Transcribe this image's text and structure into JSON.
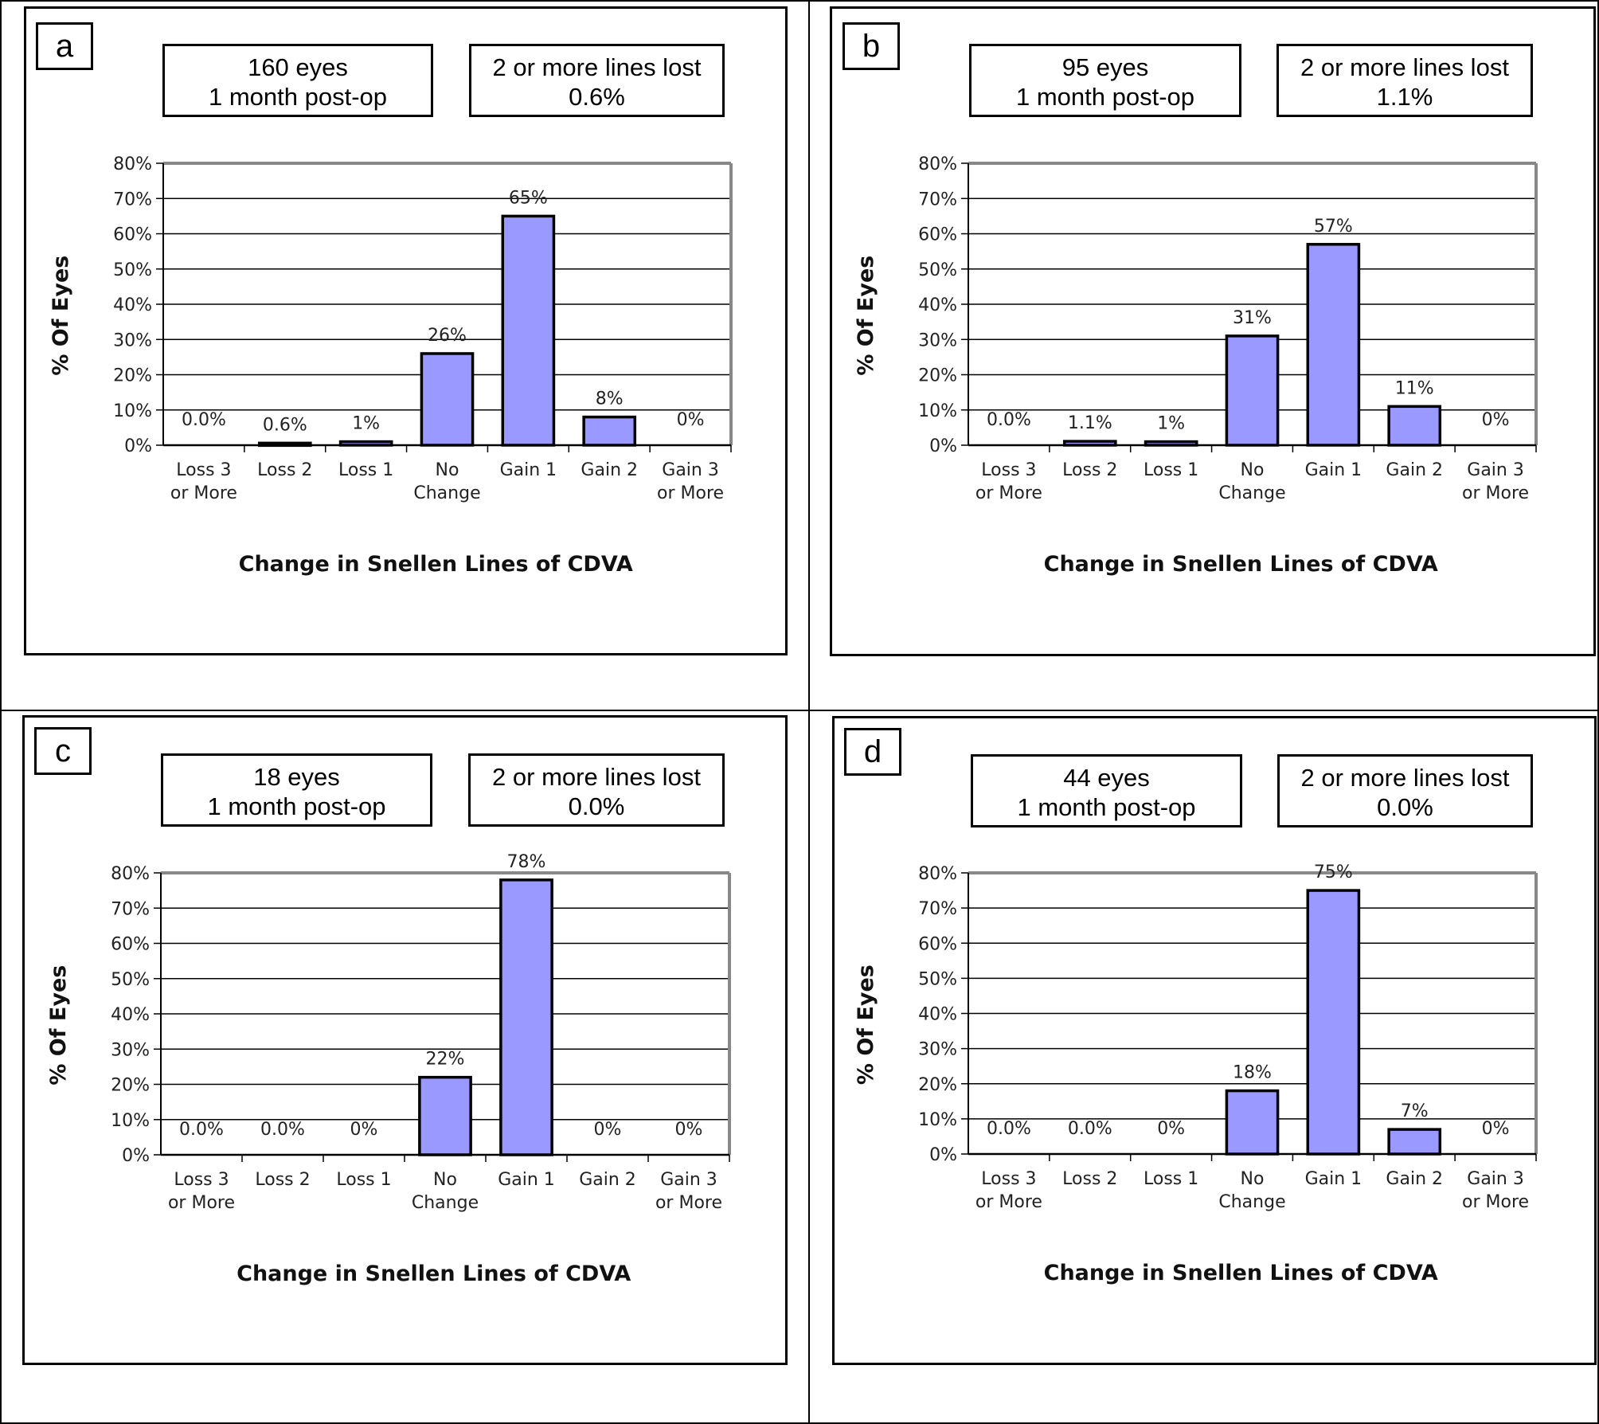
{
  "panels": [
    {
      "letter": "a",
      "count_line1": "160 eyes",
      "count_line2": "1 month post-op",
      "lost_line1": "2 or more lines lost",
      "lost_line2": "0.6%",
      "chart_data": {
        "type": "bar",
        "categories": [
          [
            "Loss 3",
            "or More"
          ],
          [
            "Loss 2"
          ],
          [
            "Loss 1"
          ],
          [
            "No",
            "Change"
          ],
          [
            "Gain 1"
          ],
          [
            "Gain 2"
          ],
          [
            "Gain 3",
            "or More"
          ]
        ],
        "values": [
          0,
          0.6,
          1,
          26,
          65,
          8,
          0
        ],
        "data_labels": [
          "0.0%",
          "0.6%",
          "1%",
          "26%",
          "65%",
          "8%",
          "0%"
        ],
        "yticks": [
          "0%",
          "10%",
          "20%",
          "30%",
          "40%",
          "50%",
          "60%",
          "70%",
          "80%"
        ],
        "ylim": [
          0,
          80
        ],
        "xlabel": "Change in Snellen Lines of CDVA",
        "ylabel": "% Of Eyes",
        "bar_color": "#9999ff"
      }
    },
    {
      "letter": "b",
      "count_line1": "95 eyes",
      "count_line2": "1 month post-op",
      "lost_line1": "2 or more lines lost",
      "lost_line2": "1.1%",
      "chart_data": {
        "type": "bar",
        "categories": [
          [
            "Loss 3",
            "or More"
          ],
          [
            "Loss 2"
          ],
          [
            "Loss 1"
          ],
          [
            "No",
            "Change"
          ],
          [
            "Gain 1"
          ],
          [
            "Gain 2"
          ],
          [
            "Gain 3",
            "or More"
          ]
        ],
        "values": [
          0,
          1.1,
          1,
          31,
          57,
          11,
          0
        ],
        "data_labels": [
          "0.0%",
          "1.1%",
          "1%",
          "31%",
          "57%",
          "11%",
          "0%"
        ],
        "yticks": [
          "0%",
          "10%",
          "20%",
          "30%",
          "40%",
          "50%",
          "60%",
          "70%",
          "80%"
        ],
        "ylim": [
          0,
          80
        ],
        "xlabel": "Change in Snellen Lines of CDVA",
        "ylabel": "% Of Eyes",
        "bar_color": "#9999ff"
      }
    },
    {
      "letter": "c",
      "count_line1": "18 eyes",
      "count_line2": "1 month post-op",
      "lost_line1": "2 or more lines lost",
      "lost_line2": "0.0%",
      "chart_data": {
        "type": "bar",
        "categories": [
          [
            "Loss 3",
            "or More"
          ],
          [
            "Loss 2"
          ],
          [
            "Loss 1"
          ],
          [
            "No",
            "Change"
          ],
          [
            "Gain 1"
          ],
          [
            "Gain 2"
          ],
          [
            "Gain 3",
            "or More"
          ]
        ],
        "values": [
          0,
          0,
          0,
          22,
          78,
          0,
          0
        ],
        "data_labels": [
          "0.0%",
          "0.0%",
          "0%",
          "22%",
          "78%",
          "0%",
          "0%"
        ],
        "yticks": [
          "0%",
          "10%",
          "20%",
          "30%",
          "40%",
          "50%",
          "60%",
          "70%",
          "80%"
        ],
        "ylim": [
          0,
          80
        ],
        "xlabel": "Change in Snellen Lines of CDVA",
        "ylabel": "% Of Eyes",
        "bar_color": "#9999ff"
      }
    },
    {
      "letter": "d",
      "count_line1": "44 eyes",
      "count_line2": "1 month post-op",
      "lost_line1": "2 or more lines lost",
      "lost_line2": "0.0%",
      "chart_data": {
        "type": "bar",
        "categories": [
          [
            "Loss 3",
            "or More"
          ],
          [
            "Loss 2"
          ],
          [
            "Loss 1"
          ],
          [
            "No",
            "Change"
          ],
          [
            "Gain 1"
          ],
          [
            "Gain 2"
          ],
          [
            "Gain 3",
            "or More"
          ]
        ],
        "values": [
          0,
          0,
          0,
          18,
          75,
          7,
          0
        ],
        "data_labels": [
          "0.0%",
          "0.0%",
          "0%",
          "18%",
          "75%",
          "7%",
          "0%"
        ],
        "yticks": [
          "0%",
          "10%",
          "20%",
          "30%",
          "40%",
          "50%",
          "60%",
          "70%",
          "80%"
        ],
        "ylim": [
          0,
          80
        ],
        "xlabel": "Change in Snellen Lines of CDVA",
        "ylabel": "% Of Eyes",
        "bar_color": "#9999ff"
      }
    }
  ]
}
